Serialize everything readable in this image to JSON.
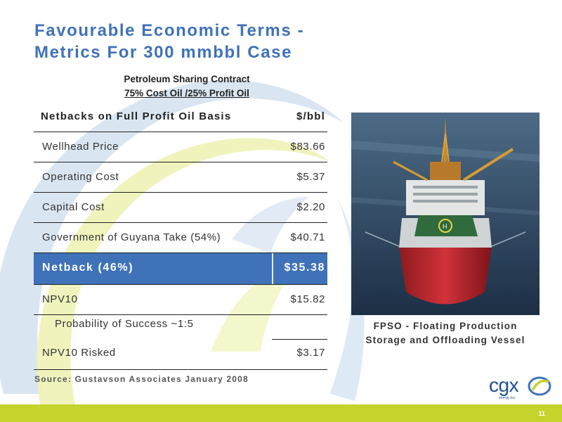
{
  "colors": {
    "title_blue": "#3f72b8",
    "highlight_blue": "#3f72b8",
    "footer_green": "#c5d32c",
    "swirl_yellow": "#eef3b5",
    "swirl_blue": "#d5e3f1"
  },
  "slide": {
    "title_line1": "Favourable Economic Terms -",
    "title_line2": "Metrics For 300 mmbbl Case",
    "psc_line1": "Petroleum Sharing Contract",
    "psc_line2": "75% Cost Oil /25% Profit Oil",
    "page_number": "11"
  },
  "table": {
    "header": {
      "label": "Netbacks on Full Profit Oil Basis",
      "unit": "$/bbl"
    },
    "rows": [
      {
        "label": "Wellhead Price",
        "value": "$83.66"
      },
      {
        "label": "Operating Cost",
        "value": "$5.37"
      },
      {
        "label": "Capital Cost",
        "value": "$2.20"
      },
      {
        "label": "Government of Guyana Take (54%)",
        "value": "$40.71"
      },
      {
        "label": "Netback (46%)",
        "value": "$35.38"
      },
      {
        "label": "NPV10",
        "value": "$15.82"
      },
      {
        "label": "Probability of Success ~1:5",
        "value": ""
      },
      {
        "label": "NPV10 Risked",
        "value": "$3.17"
      }
    ]
  },
  "source": "Source: Gustavson Associates January 2008",
  "photo": {
    "icon": "fpso-vessel-photo",
    "caption_line1": "FPSO - Floating Production",
    "caption_line2": "Storage and Offloading Vessel"
  },
  "logo": {
    "text": "cgx",
    "tagline": "energy inc."
  }
}
